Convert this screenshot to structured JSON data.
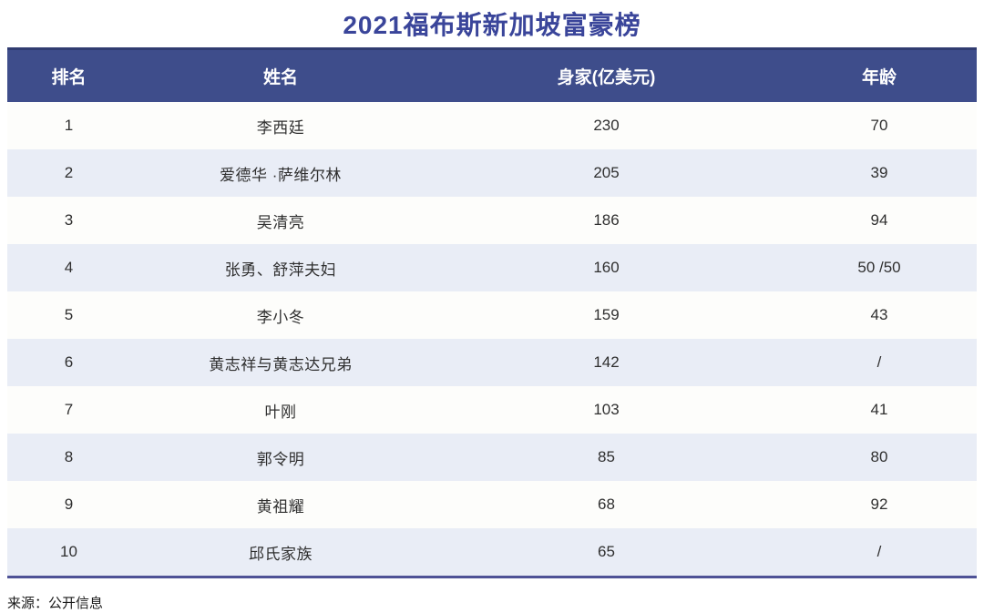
{
  "page": {
    "source": "来源：公开信息"
  },
  "colors": {
    "title_text": "#3A459A",
    "header_bg": "#3E4D8B",
    "header_text": "#FFFFFF",
    "row_alt_bg": "#E9EDF6",
    "row_bg": "#FDFDFB",
    "bottom_rule": "#4E5296"
  },
  "chart_data": {
    "type": "table",
    "title": "2021福布斯新加坡富豪榜",
    "columns": [
      "排名",
      "姓名",
      "身家(亿美元)",
      "年龄"
    ],
    "rows": [
      [
        "1",
        "李西廷",
        "230",
        "70"
      ],
      [
        "2",
        "爱德华 ·萨维尔林",
        "205",
        "39"
      ],
      [
        "3",
        "吴清亮",
        "186",
        "94"
      ],
      [
        "4",
        "张勇、舒萍夫妇",
        "160",
        "50 /50"
      ],
      [
        "5",
        "李小冬",
        "159",
        "43"
      ],
      [
        "6",
        "黄志祥与黄志达兄弟",
        "142",
        "/"
      ],
      [
        "7",
        "叶刚",
        "103",
        "41"
      ],
      [
        "8",
        "郭令明",
        "85",
        "80"
      ],
      [
        "9",
        "黄祖耀",
        "68",
        "92"
      ],
      [
        "10",
        "邱氏家族",
        "65",
        "/"
      ]
    ]
  }
}
